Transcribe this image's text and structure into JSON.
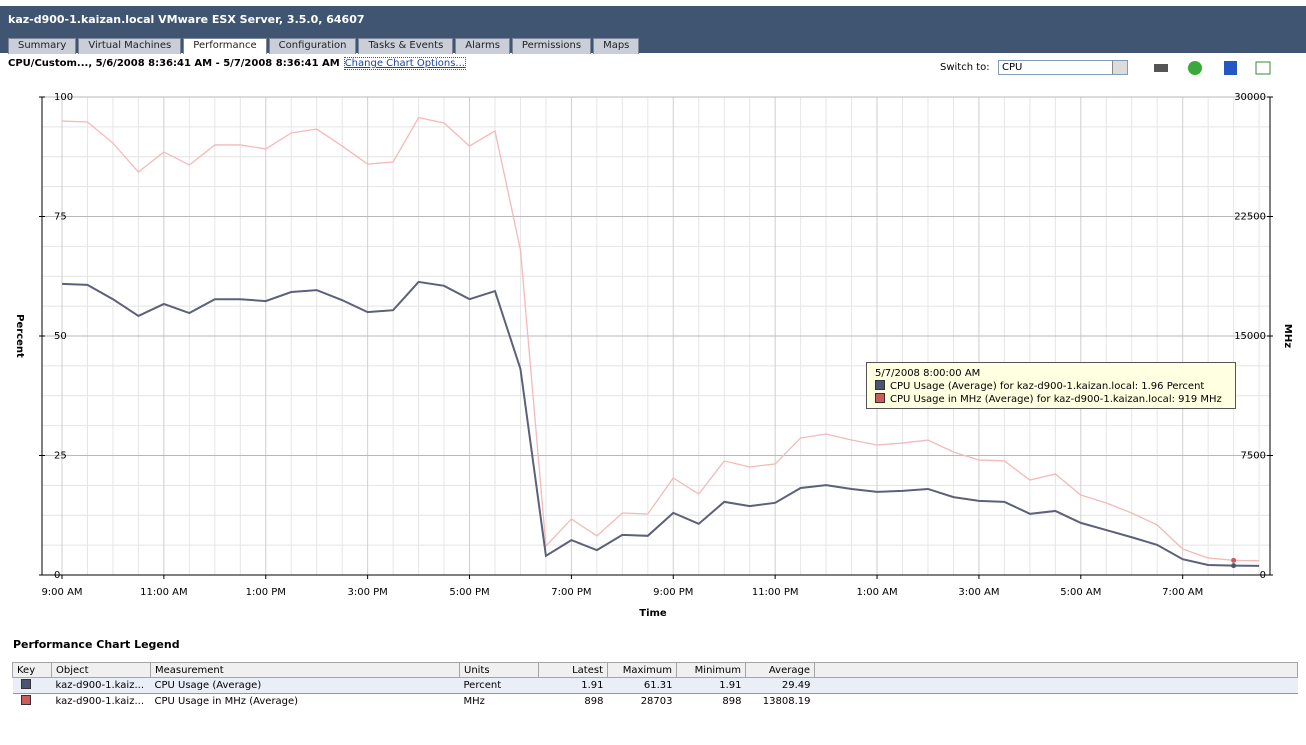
{
  "header": {
    "title": "kaz-d900-1.kaizan.local VMware ESX Server, 3.5.0, 64607"
  },
  "tabs": [
    "Summary",
    "Virtual Machines",
    "Performance",
    "Configuration",
    "Tasks & Events",
    "Alarms",
    "Permissions",
    "Maps"
  ],
  "toolbar": {
    "range": "CPU/Custom..., 5/6/2008 8:36:41 AM - 5/7/2008 8:36:41 AM",
    "link": "Change Chart Options...",
    "switch_label": "Switch to:",
    "switch_value": "CPU"
  },
  "chart_data": {
    "type": "line",
    "x_label": "Time",
    "y_label": "Percent",
    "y2_label": "MHz",
    "categories": [
      "9:00 AM",
      null,
      null,
      null,
      "11:00 AM",
      null,
      null,
      null,
      "1:00 PM",
      null,
      null,
      null,
      "3:00 PM",
      null,
      null,
      null,
      "5:00 PM",
      null,
      null,
      null,
      "7:00 PM",
      null,
      null,
      null,
      "9:00 PM",
      null,
      null,
      null,
      "11:00 PM",
      null,
      null,
      null,
      "1:00 AM",
      null,
      null,
      null,
      "3:00 AM",
      null,
      null,
      null,
      "5:00 AM",
      null,
      null,
      null,
      "7:00 AM",
      null,
      null,
      null
    ],
    "series": [
      {
        "name": "CPU Usage (Average)",
        "color": "#5c6079",
        "values": [
          60.9,
          60.7,
          57.7,
          54.2,
          56.7,
          54.8,
          57.7,
          57.7,
          57.3,
          59.2,
          59.6,
          57.5,
          55.0,
          55.4,
          61.31,
          60.5,
          57.7,
          59.4,
          43.1,
          4.0,
          7.3,
          5.2,
          8.4,
          8.2,
          13.0,
          10.7,
          15.3,
          14.4,
          15.1,
          18.2,
          18.8,
          18.0,
          17.4,
          17.6,
          18.0,
          16.3,
          15.5,
          15.3,
          12.8,
          13.4,
          10.9,
          9.4,
          7.9,
          6.3,
          3.3,
          2.1,
          1.96,
          1.91
        ]
      },
      {
        "name": "CPU Usage in MHz (Average)",
        "color": "#f4b9b9",
        "axis": "y2",
        "values": [
          28490,
          28430,
          27110,
          25290,
          26550,
          25730,
          26990,
          26990,
          26740,
          27740,
          27990,
          26920,
          25790,
          25920,
          28703,
          28370,
          26920,
          27870,
          20400,
          1820,
          3520,
          2450,
          3890,
          3830,
          6090,
          5080,
          7160,
          6780,
          6970,
          8600,
          8850,
          8470,
          8160,
          8280,
          8470,
          7720,
          7220,
          7160,
          5960,
          6340,
          5020,
          4520,
          3890,
          3140,
          1630,
          1070,
          919,
          898
        ]
      }
    ],
    "ylim": [
      0,
      100
    ],
    "yticks": [
      0,
      25,
      50,
      75,
      100
    ],
    "y2lim": [
      0,
      30000
    ],
    "y2ticks": [
      0,
      7500,
      15000,
      22500,
      30000
    ],
    "grid": true,
    "tooltip": {
      "index": 46,
      "title": "5/7/2008 8:00:00 AM",
      "lines": [
        "CPU Usage (Average) for kaz-d900-1.kaizan.local: 1.96 Percent",
        "CPU Usage in MHz (Average) for kaz-d900-1.kaizan.local: 919 MHz"
      ]
    }
  },
  "legend": {
    "title": "Performance Chart Legend",
    "columns": [
      "Key",
      "Object",
      "Measurement",
      "Units",
      "Latest",
      "Maximum",
      "Minimum",
      "Average"
    ],
    "rows": [
      {
        "color": "#4b5472",
        "cells": [
          "kaz-d900-1.kaiz...",
          "CPU Usage (Average)",
          "Percent",
          "1.91",
          "61.31",
          "1.91",
          "29.49"
        ]
      },
      {
        "color": "#cc5b5b",
        "cells": [
          "kaz-d900-1.kaiz...",
          "CPU Usage in MHz (Average)",
          "MHz",
          "898",
          "28703",
          "898",
          "13808.19"
        ]
      }
    ]
  }
}
